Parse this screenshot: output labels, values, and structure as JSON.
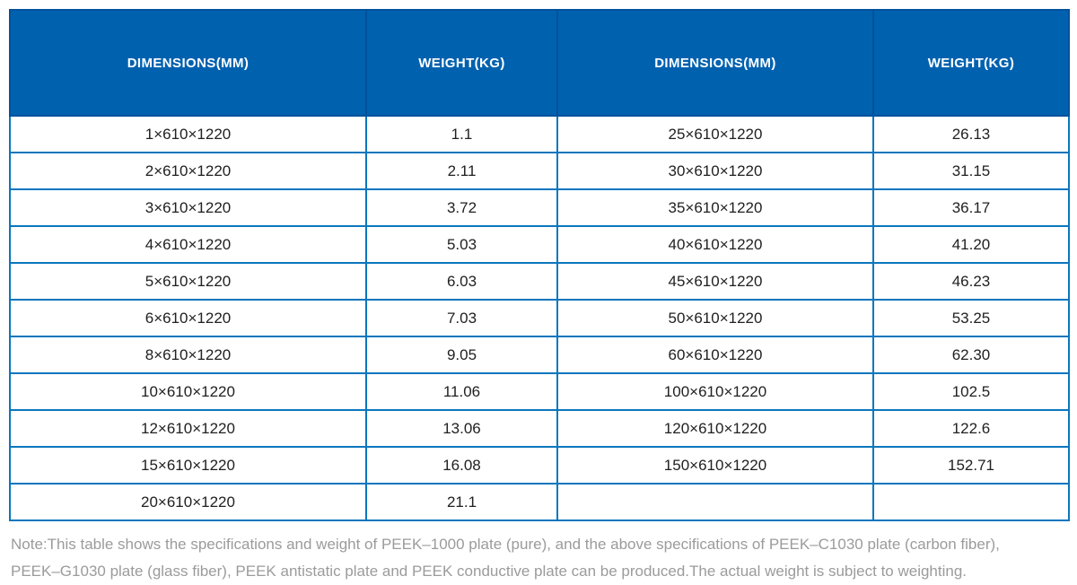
{
  "table": {
    "headers": [
      "DIMENSIONS(MM)",
      "WEIGHT(KG)",
      "DIMENSIONS(MM)",
      "WEIGHT(KG)"
    ],
    "rows": [
      [
        "1×610×1220",
        "1.1",
        "25×610×1220",
        "26.13"
      ],
      [
        "2×610×1220",
        "2.11",
        "30×610×1220",
        "31.15"
      ],
      [
        "3×610×1220",
        "3.72",
        "35×610×1220",
        "36.17"
      ],
      [
        "4×610×1220",
        "5.03",
        "40×610×1220",
        "41.20"
      ],
      [
        "5×610×1220",
        "6.03",
        "45×610×1220",
        "46.23"
      ],
      [
        "6×610×1220",
        "7.03",
        "50×610×1220",
        "53.25"
      ],
      [
        "8×610×1220",
        "9.05",
        "60×610×1220",
        "62.30"
      ],
      [
        "10×610×1220",
        "11.06",
        "100×610×1220",
        "102.5"
      ],
      [
        "12×610×1220",
        "13.06",
        "120×610×1220",
        "122.6"
      ],
      [
        "15×610×1220",
        "16.08",
        "150×610×1220",
        "152.71"
      ],
      [
        "20×610×1220",
        "21.1",
        "",
        ""
      ]
    ]
  },
  "note": {
    "lines": [
      "Note:This table shows the specifications and weight of PEEK–1000 plate (pure), and the above specifications of PEEK–C1030 plate (carbon fiber),",
      "PEEK–G1030 plate (glass fiber), PEEK antistatic plate and PEEK conductive plate can be produced.The actual weight is subject to weighting."
    ]
  },
  "colors": {
    "header_background": "#0061AF",
    "header_border": "#02519B",
    "grid_border": "#0B76BD",
    "cell_text": "#212121",
    "note_text": "#9B9B9B"
  }
}
